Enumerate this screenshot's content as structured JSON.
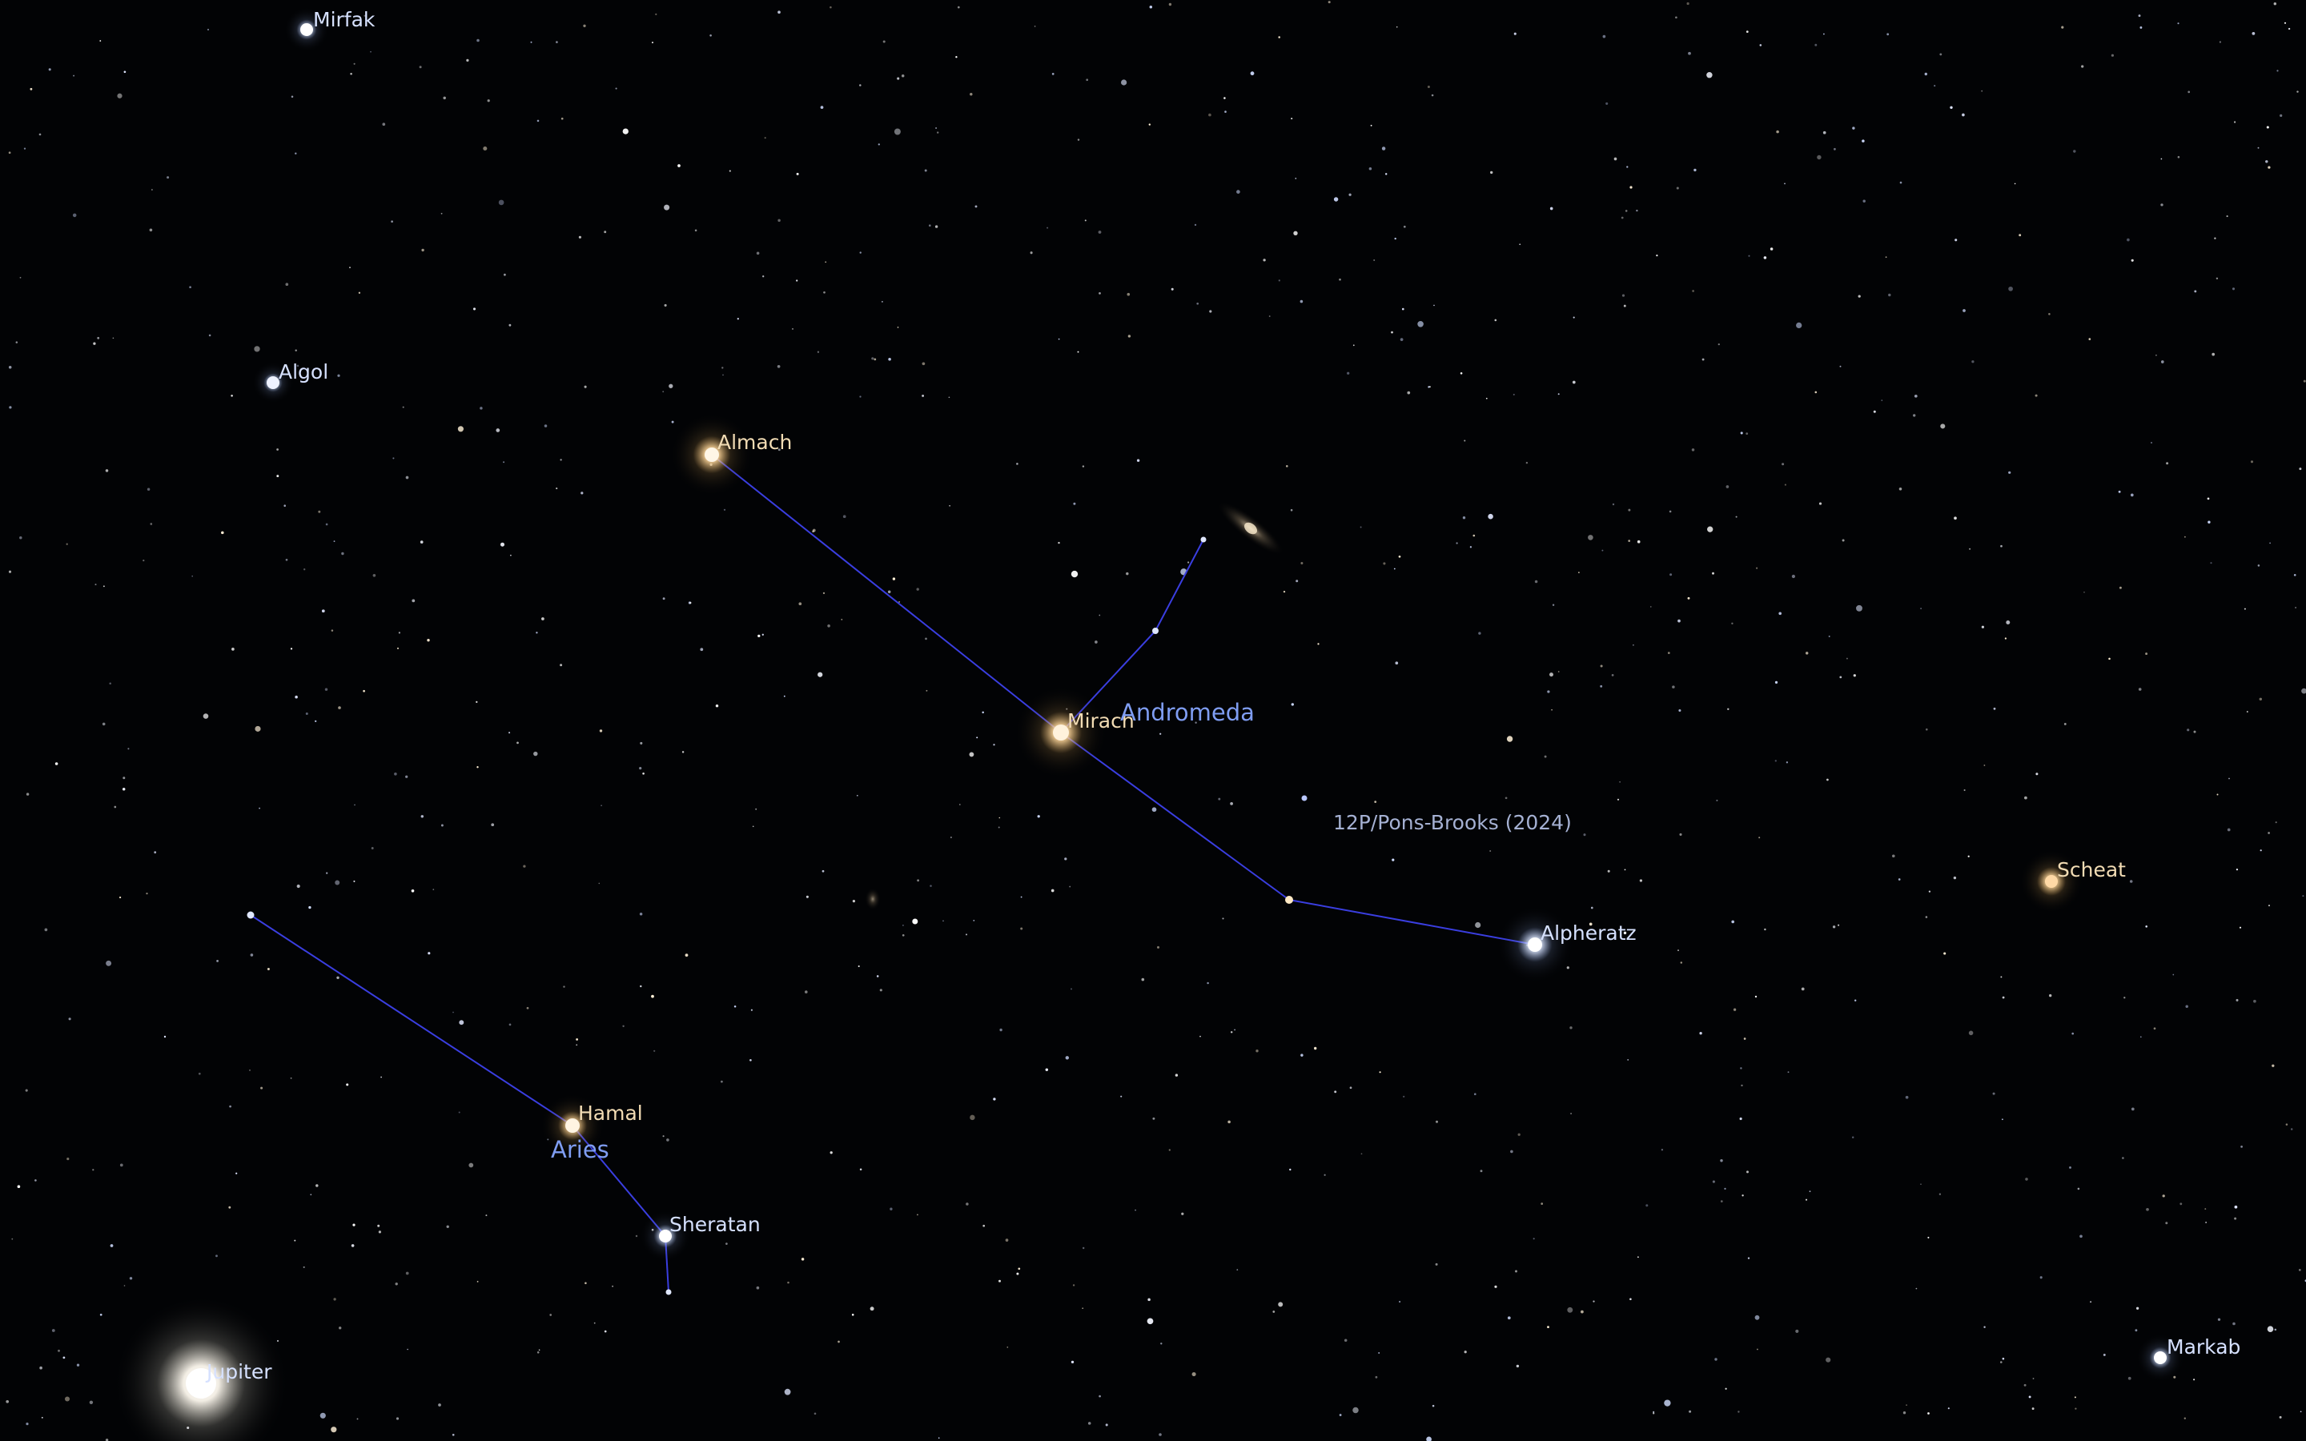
{
  "app": {
    "name": "Planetarium sky view"
  },
  "colors": {
    "background": "#020305",
    "constellation_line": "#3a3ee0",
    "constellation_label": "#7f9df2",
    "comet_label": "#a5b1d3",
    "label_warm": "#f2dcb4",
    "label_cool": "#d6e1ff",
    "star_white": "#ffffff"
  },
  "constellations": [
    {
      "id": "andromeda",
      "label": "Andromeda"
    },
    {
      "id": "aries",
      "label": "Aries"
    }
  ],
  "named_objects": [
    {
      "id": "mirfak",
      "label": "Mirfak",
      "kind": "star",
      "tint": "cool"
    },
    {
      "id": "algol",
      "label": "Algol",
      "kind": "star",
      "tint": "cool"
    },
    {
      "id": "almach",
      "label": "Almach",
      "kind": "star",
      "tint": "warm"
    },
    {
      "id": "mirach",
      "label": "Mirach",
      "kind": "star",
      "tint": "warm"
    },
    {
      "id": "alpheratz",
      "label": "Alpheratz",
      "kind": "star",
      "tint": "cool"
    },
    {
      "id": "scheat",
      "label": "Scheat",
      "kind": "star",
      "tint": "warm"
    },
    {
      "id": "markab",
      "label": "Markab",
      "kind": "star",
      "tint": "cool"
    },
    {
      "id": "hamal",
      "label": "Hamal",
      "kind": "star",
      "tint": "warm"
    },
    {
      "id": "sheratan",
      "label": "Sheratan",
      "kind": "star",
      "tint": "cool"
    },
    {
      "id": "jupiter",
      "label": "Jupiter",
      "kind": "planet",
      "tint": "cool"
    }
  ],
  "comets": [
    {
      "id": "pons-brooks",
      "label": "12P/Pons-Brooks (2024)"
    }
  ],
  "deep_sky": [
    {
      "id": "andromeda-galaxy",
      "kind": "galaxy"
    },
    {
      "id": "triangulum-galaxy",
      "kind": "galaxy"
    }
  ]
}
